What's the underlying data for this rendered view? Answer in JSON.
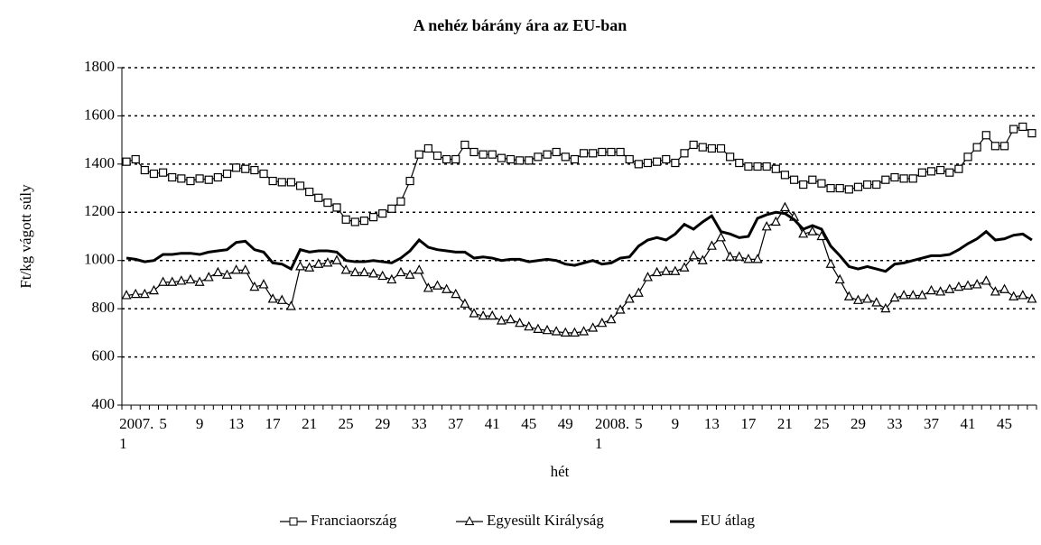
{
  "chart_data": {
    "type": "line",
    "title": "A nehéz bárány ára az EU-ban",
    "x_label": "hét",
    "y_label": "Ft/kg vágott súly",
    "categories": [
      "2007. 1",
      null,
      null,
      null,
      "5",
      null,
      null,
      null,
      "9",
      null,
      null,
      null,
      "13",
      null,
      null,
      null,
      "17",
      null,
      null,
      null,
      "21",
      null,
      null,
      null,
      "25",
      null,
      null,
      null,
      "29",
      null,
      null,
      null,
      "33",
      null,
      null,
      null,
      "37",
      null,
      null,
      null,
      "41",
      null,
      null,
      null,
      "45",
      null,
      null,
      null,
      "49",
      null,
      null,
      null,
      "2008. 1",
      null,
      null,
      null,
      "5",
      null,
      null,
      null,
      "9",
      null,
      null,
      null,
      "13",
      null,
      null,
      null,
      "17",
      null,
      null,
      null,
      "21",
      null,
      null,
      null,
      "25",
      null,
      null,
      null,
      "29",
      null,
      null,
      null,
      "33",
      null,
      null,
      null,
      "37",
      null,
      null,
      null,
      "41",
      null,
      null,
      null,
      "45",
      null,
      null,
      null
    ],
    "series": [
      {
        "name": "Franciaország",
        "color": "#000000",
        "marker": "square",
        "values": [
          1410,
          1420,
          1375,
          1360,
          1365,
          1345,
          1340,
          1330,
          1340,
          1335,
          1345,
          1360,
          1385,
          1380,
          1375,
          1360,
          1330,
          1325,
          1325,
          1310,
          1285,
          1260,
          1240,
          1220,
          1170,
          1160,
          1165,
          1180,
          1195,
          1215,
          1245,
          1330,
          1440,
          1465,
          1435,
          1420,
          1420,
          1480,
          1450,
          1440,
          1440,
          1425,
          1420,
          1415,
          1415,
          1430,
          1440,
          1450,
          1430,
          1420,
          1445,
          1445,
          1450,
          1450,
          1450,
          1420,
          1400,
          1405,
          1410,
          1420,
          1405,
          1445,
          1480,
          1470,
          1465,
          1465,
          1430,
          1405,
          1390,
          1390,
          1390,
          1380,
          1355,
          1335,
          1315,
          1335,
          1320,
          1300,
          1300,
          1295,
          1305,
          1315,
          1315,
          1335,
          1345,
          1340,
          1340,
          1365,
          1370,
          1375,
          1365,
          1380,
          1430,
          1470,
          1520,
          1475,
          1475,
          1545,
          1555,
          1528
        ]
      },
      {
        "name": "Egyesült Királyság",
        "color": "#000000",
        "marker": "triangle",
        "values": [
          855,
          860,
          860,
          875,
          910,
          910,
          915,
          920,
          910,
          930,
          950,
          940,
          960,
          960,
          890,
          900,
          840,
          835,
          810,
          975,
          970,
          985,
          990,
          1000,
          960,
          950,
          950,
          945,
          935,
          920,
          950,
          940,
          960,
          885,
          895,
          880,
          860,
          820,
          780,
          770,
          770,
          750,
          755,
          740,
          725,
          715,
          710,
          705,
          700,
          700,
          705,
          720,
          740,
          755,
          795,
          840,
          865,
          930,
          950,
          955,
          955,
          970,
          1020,
          1000,
          1060,
          1095,
          1015,
          1015,
          1005,
          1005,
          1140,
          1160,
          1220,
          1180,
          1110,
          1120,
          1100,
          985,
          920,
          850,
          835,
          840,
          825,
          800,
          845,
          855,
          855,
          855,
          875,
          870,
          880,
          890,
          895,
          900,
          915,
          870,
          880,
          850,
          855,
          840
        ]
      },
      {
        "name": "EU átlag",
        "color": "#000000",
        "marker": "none",
        "values": [
          1010,
          1005,
          995,
          1000,
          1025,
          1025,
          1030,
          1030,
          1025,
          1035,
          1040,
          1045,
          1075,
          1080,
          1045,
          1035,
          990,
          985,
          965,
          1045,
          1035,
          1040,
          1040,
          1035,
          1000,
          995,
          995,
          1000,
          995,
          990,
          1010,
          1040,
          1085,
          1055,
          1045,
          1040,
          1035,
          1035,
          1010,
          1015,
          1010,
          1000,
          1005,
          1005,
          995,
          1000,
          1005,
          1000,
          985,
          980,
          990,
          1000,
          985,
          990,
          1010,
          1015,
          1060,
          1085,
          1095,
          1085,
          1110,
          1150,
          1130,
          1160,
          1185,
          1120,
          1110,
          1095,
          1100,
          1175,
          1190,
          1200,
          1195,
          1170,
          1130,
          1145,
          1130,
          1060,
          1020,
          975,
          965,
          975,
          965,
          955,
          985,
          990,
          1000,
          1010,
          1020,
          1020,
          1025,
          1045,
          1070,
          1090,
          1120,
          1085,
          1090,
          1105,
          1110,
          1085
        ]
      }
    ],
    "ylim": [
      400,
      1800
    ],
    "yticks": [
      400,
      600,
      800,
      1000,
      1200,
      1400,
      1600,
      1800
    ],
    "grid": true,
    "legend": "bottom"
  }
}
